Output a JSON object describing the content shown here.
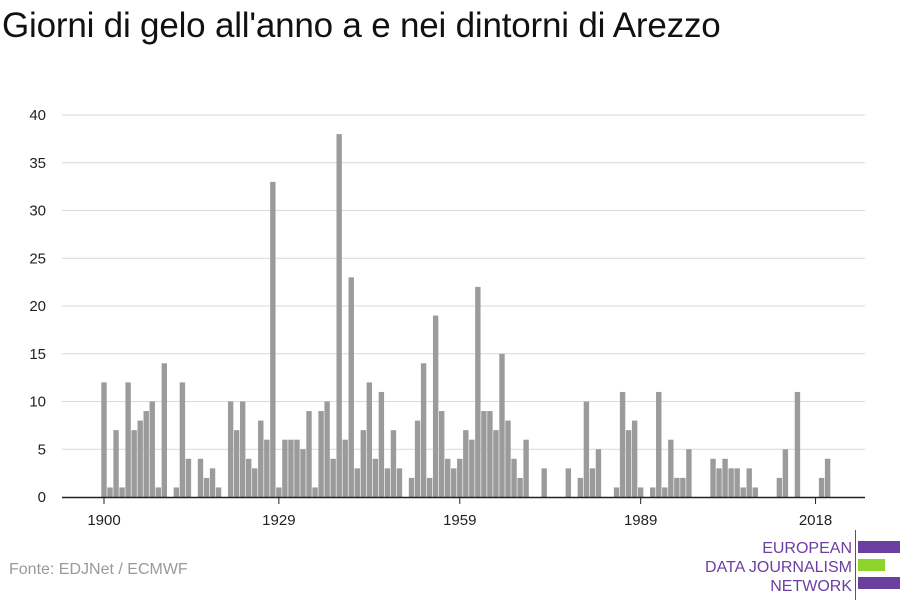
{
  "title": "Giorni di gelo all'anno a e nei dintorni di Arezzo",
  "source": "Fonte: EDJNet / ECMWF",
  "logo": {
    "line1": "EUROPEAN",
    "line2": "DATA JOURNALISM",
    "line3": "NETWORK"
  },
  "colors": {
    "bar": "#9b9b9b",
    "grid": "#d9d9d9",
    "axis": "#222222",
    "logo_purple": "#6b3fa0",
    "logo_green": "#8cd42a"
  },
  "chart_data": {
    "type": "bar",
    "x_start": 1900,
    "x_end": 2021,
    "xticks": [
      1900,
      1929,
      1959,
      1989,
      2018
    ],
    "yticks": [
      0,
      5,
      10,
      15,
      20,
      25,
      30,
      35,
      40
    ],
    "ylim": [
      0,
      40
    ],
    "grid": true,
    "values": [
      12,
      1,
      7,
      1,
      12,
      7,
      8,
      9,
      10,
      1,
      14,
      0,
      1,
      12,
      4,
      0,
      4,
      2,
      3,
      1,
      0,
      10,
      7,
      10,
      4,
      3,
      8,
      6,
      33,
      1,
      6,
      6,
      6,
      5,
      9,
      1,
      9,
      10,
      4,
      38,
      6,
      23,
      3,
      7,
      12,
      4,
      11,
      3,
      7,
      3,
      0,
      2,
      8,
      14,
      2,
      19,
      9,
      4,
      3,
      4,
      7,
      6,
      22,
      9,
      9,
      7,
      15,
      8,
      4,
      2,
      6,
      0,
      0,
      3,
      0,
      0,
      0,
      3,
      0,
      2,
      10,
      3,
      5,
      0,
      0,
      1,
      11,
      7,
      8,
      1,
      0,
      1,
      11,
      1,
      6,
      2,
      2,
      5,
      0,
      0,
      0,
      4,
      3,
      4,
      3,
      3,
      1,
      3,
      1,
      0,
      0,
      0,
      2,
      5,
      0,
      11,
      0,
      0,
      0,
      2,
      4,
      0
    ]
  }
}
